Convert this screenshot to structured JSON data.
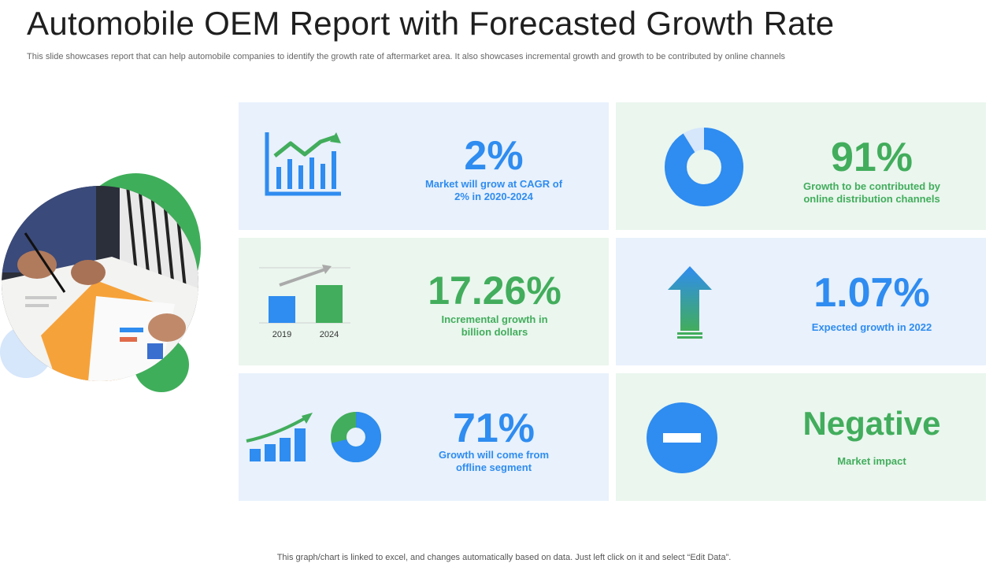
{
  "header": {
    "title": "Automobile OEM Report with Forecasted Growth Rate",
    "subtitle": "This slide showcases report that can help automobile companies to identify the growth rate of aftermarket area. It also showcases incremental growth and growth to be contributed by online channels"
  },
  "footer": "This graph/chart is linked to excel, and changes automatically based on data. Just left click on it and select “Edit Data”.",
  "colors": {
    "blue": "#2f8cf0",
    "green": "#42ad5c",
    "card_blue": "#e8f1fc",
    "card_green": "#eaf6ee"
  },
  "cards": [
    {
      "value": "2%",
      "line1": "Market will grow at CAGR  of",
      "line2": "2%  in 2020-2024",
      "icon": "growth-chart-icon"
    },
    {
      "value": "91%",
      "line1": "Growth to be contributed by",
      "line2": "online distribution  channels",
      "icon": "donut-chart-icon",
      "donut_fraction": 0.91
    },
    {
      "value": "17.26%",
      "line1": "Incremental growth in",
      "line2": "billion dollars",
      "icon": "bar-comparison-icon",
      "bar_labels": [
        "2019",
        "2024"
      ]
    },
    {
      "value": "1.07%",
      "line1": "Expected growth in 2022",
      "line2": "",
      "icon": "up-arrow-icon"
    },
    {
      "value": "71%",
      "line1": "Growth will come from",
      "line2": "offline segment",
      "icon": "bar-donut-icon",
      "donut_fraction": 0.71
    },
    {
      "value": "Negative",
      "line1": "Market impact",
      "line2": "",
      "icon": "minus-circle-icon"
    }
  ]
}
